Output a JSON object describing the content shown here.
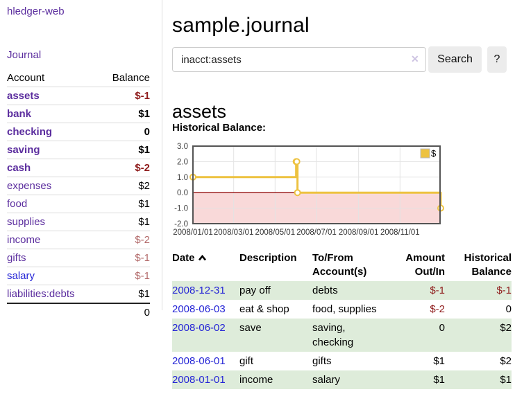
{
  "app": {
    "brand": "hledger-web"
  },
  "sidebar": {
    "journal_link": "Journal",
    "table": {
      "account_header": "Account",
      "balance_header": "Balance",
      "accounts": [
        {
          "name": "assets",
          "balance": "$-1"
        },
        {
          "name": "bank",
          "balance": "$1"
        },
        {
          "name": "checking",
          "balance": "0"
        },
        {
          "name": "saving",
          "balance": "$1"
        },
        {
          "name": "cash",
          "balance": "$-2"
        },
        {
          "name": "expenses",
          "balance": "$2"
        },
        {
          "name": "food",
          "balance": "$1"
        },
        {
          "name": "supplies",
          "balance": "$1"
        },
        {
          "name": "income",
          "balance": "$-2"
        },
        {
          "name": "gifts",
          "balance": "$-1"
        },
        {
          "name": "salary",
          "balance": "$-1"
        },
        {
          "name": "liabilities:debts",
          "balance": "$1"
        }
      ],
      "total": "0"
    }
  },
  "main": {
    "title": "sample.journal",
    "search": {
      "value": "inacct:assets",
      "clear_icon": "✕",
      "search_button": "Search",
      "help_button": "?"
    },
    "account_heading": "assets",
    "chart_title": "Historical Balance:"
  },
  "chart_data": {
    "type": "line",
    "step": true,
    "title": "Historical Balance of assets",
    "series": [
      {
        "name": "$",
        "color": "#edc240",
        "points": [
          [
            "2008-01-01",
            1
          ],
          [
            "2008-06-01",
            2
          ],
          [
            "2008-06-02",
            2
          ],
          [
            "2008-06-03",
            0
          ],
          [
            "2008-12-31",
            -1
          ]
        ]
      }
    ],
    "x_ticks": [
      "2008/01/01",
      "2008/03/01",
      "2008/05/01",
      "2008/07/01",
      "2008/09/01",
      "2008/11/01"
    ],
    "y_ticks": [
      "3.0",
      "2.0",
      "1.0",
      "0.0",
      "-1.0",
      "-2.0"
    ],
    "ylim": [
      -2,
      3
    ],
    "xlim": [
      "2008-01-01",
      "2008-12-31"
    ],
    "grid": true,
    "legend_position": "top-right",
    "negative_region": true,
    "colors": {
      "series": "#edc240",
      "negative_fill": "#f9d9d9",
      "zero_line": "#9c1f1f",
      "gridline": "#e3e3e3",
      "border": "#545454"
    }
  },
  "register": {
    "sort": "ascending",
    "headers": {
      "date": "Date",
      "description": "Description",
      "accounts": "To/From Account(s)",
      "amount": "Amount Out/In",
      "balance": "Historical Balance"
    },
    "rows": [
      {
        "date": "2008-12-31",
        "description": "pay off",
        "accounts": "debts",
        "amount": "$-1",
        "balance": "$-1"
      },
      {
        "date": "2008-06-03",
        "description": "eat & shop",
        "accounts": "food, supplies",
        "amount": "$-2",
        "balance": "0"
      },
      {
        "date": "2008-06-02",
        "description": "save",
        "accounts": "saving, checking",
        "amount": "0",
        "balance": "$2"
      },
      {
        "date": "2008-06-01",
        "description": "gift",
        "accounts": "gifts",
        "amount": "$1",
        "balance": "$2"
      },
      {
        "date": "2008-01-01",
        "description": "income",
        "accounts": "salary",
        "amount": "$1",
        "balance": "$1"
      }
    ]
  },
  "colors": {
    "link_purple": "#5b2d9e",
    "link_blue": "#2525d6",
    "negative_strong": "#8f1c1c",
    "negative_soft": "#b36b6b",
    "row_green": "#deecda",
    "button_gray": "#ececec"
  }
}
